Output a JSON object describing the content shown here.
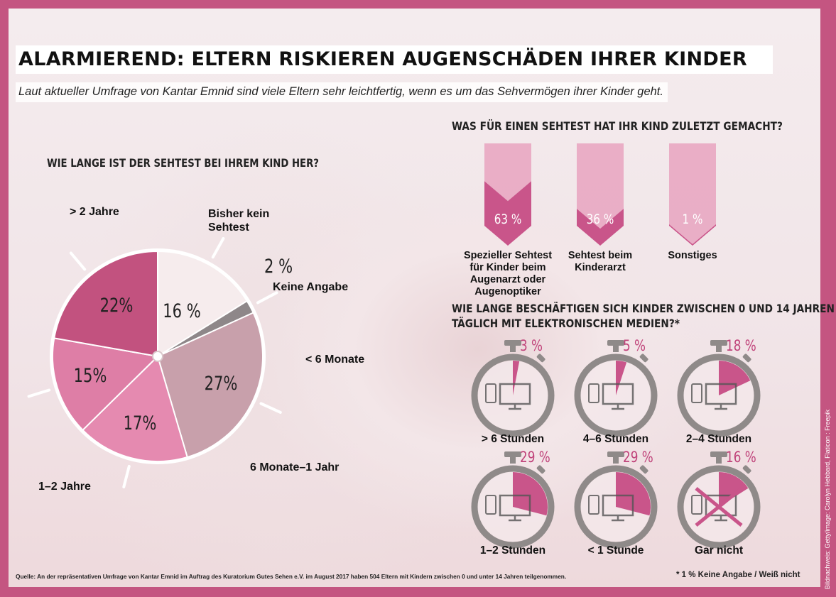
{
  "header": {
    "title": "ALARMIEREND: ELTERN RISKIEREN AUGENSCHÄDEN IHRER KINDER",
    "subtitle": "Laut aktueller Umfrage von Kantar Emnid sind viele Eltern sehr leichtfertig, wenn es um das Sehvermögen ihrer Kinder geht."
  },
  "colors": {
    "frame": "#c45581",
    "accent": "#c0437a",
    "timer_ring": "#8f8a89"
  },
  "chart_data": [
    {
      "type": "pie",
      "title": "WIE LANGE IST DER SEHTEST BEI IHREM KIND HER?",
      "slices": [
        {
          "label": "Bisher kein Sehtest",
          "value": 16,
          "value_text": "16 %",
          "color": "#f6eced"
        },
        {
          "label": "Keine Angabe",
          "value": 2,
          "value_text": "2 %",
          "color": "#8e8789"
        },
        {
          "label": "< 6 Monate",
          "value": 27,
          "value_text": "27%",
          "color": "#c8a0ab"
        },
        {
          "label": "6 Monate–1 Jahr",
          "value": 17,
          "value_text": "17%",
          "color": "#e58ab0"
        },
        {
          "label": "1–2 Jahre",
          "value": 15,
          "value_text": "15%",
          "color": "#de7ea6"
        },
        {
          "label": "> 2 Jahre",
          "value": 22,
          "value_text": "22%",
          "color": "#c2527f"
        }
      ]
    },
    {
      "type": "bar",
      "title": "WAS FÜR EINEN SEHTEST HAT IHR KIND ZULETZT GEMACHT?",
      "categories": [
        "Spezieller Sehtest für Kinder beim Augenarzt oder Augenoptiker",
        "Sehtest beim Kinderarzt",
        "Sonstiges"
      ],
      "values": [
        63,
        36,
        1
      ],
      "value_texts": [
        "63 %",
        "36 %",
        "1 %"
      ],
      "category_lines": [
        [
          "Spezieller Sehtest",
          "für Kinder beim",
          "Augenarzt oder",
          "Augenoptiker"
        ],
        [
          "Sehtest beim",
          "Kinderarzt"
        ],
        [
          "Sonstiges"
        ]
      ],
      "ylim": [
        0,
        100
      ]
    },
    {
      "type": "pie",
      "title_lines": [
        "WIE LANGE BESCHÄFTIGEN SICH KINDER ZWISCHEN 0 UND 14 JAHREN",
        "TÄGLICH MIT ELEKTRONISCHEN MEDIEN?*"
      ],
      "items": [
        {
          "label": "> 6 Stunden",
          "value": 3,
          "value_text": "3 %"
        },
        {
          "label": "4–6 Stunden",
          "value": 5,
          "value_text": "5 %"
        },
        {
          "label": "2–4 Stunden",
          "value": 18,
          "value_text": "18 %"
        },
        {
          "label": "1–2 Stunden",
          "value": 29,
          "value_text": "29 %"
        },
        {
          "label": "< 1 Stunde",
          "value": 29,
          "value_text": "29 %"
        },
        {
          "label": "Gar nicht",
          "value": 16,
          "value_text": "16 %"
        }
      ]
    }
  ],
  "footer": {
    "source": "Quelle: An der repräsentativen Umfrage von Kantar Emnid im Auftrag des Kuratorium Gutes Sehen e.V. im August 2017 haben 504 Eltern mit Kindern zwischen 0 und unter 14 Jahren teilgenommen.",
    "footnote": "* 1 % Keine Angabe / Weiß nicht",
    "credit": "Bildnachweis: Getty/image: Carolyn Hebbard, Flaticon : Freepik"
  }
}
